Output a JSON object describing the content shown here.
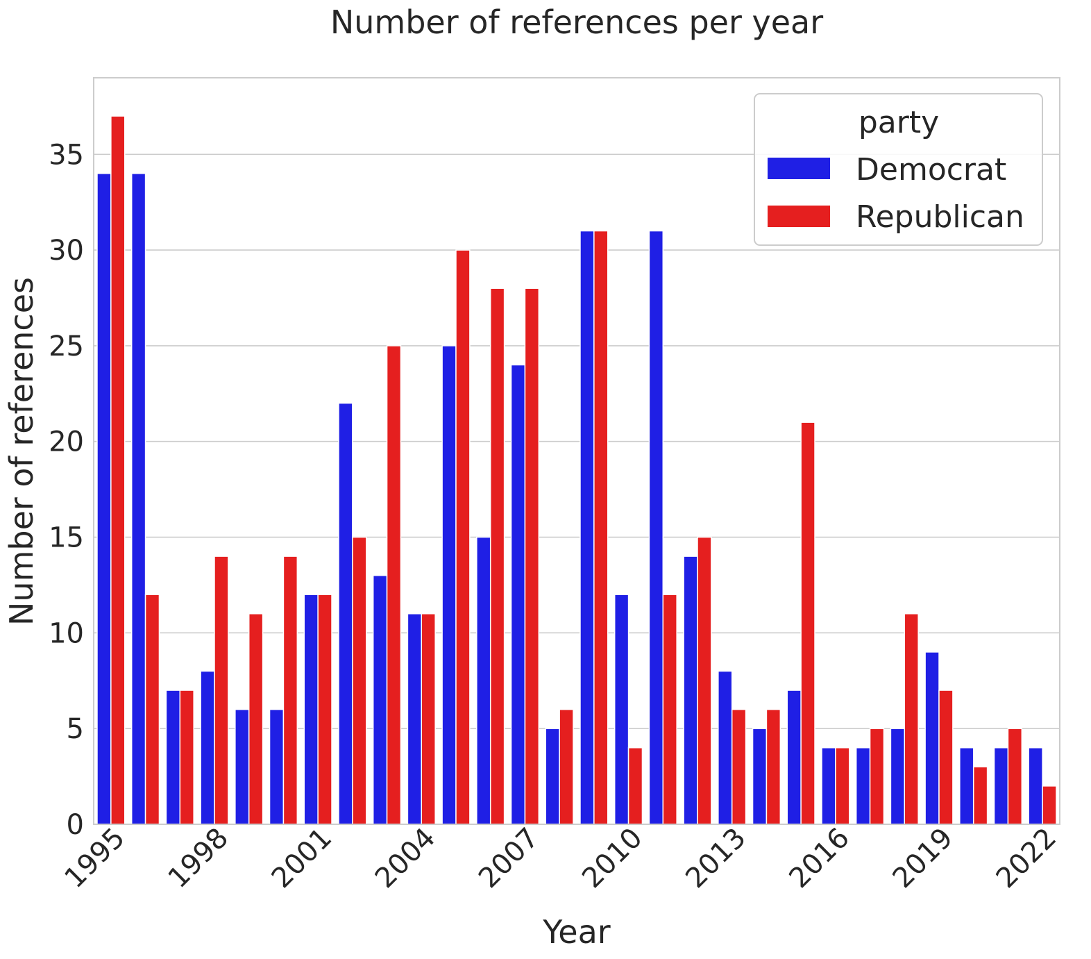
{
  "chart_data": {
    "type": "bar",
    "title": "Number of references per year",
    "xlabel": "Year",
    "ylabel": "Number of references",
    "ylim": [
      0,
      39
    ],
    "yticks": [
      0,
      5,
      10,
      15,
      20,
      25,
      30,
      35
    ],
    "categories": [
      1995,
      1996,
      1997,
      1998,
      1999,
      2000,
      2001,
      2002,
      2003,
      2004,
      2005,
      2006,
      2007,
      2008,
      2009,
      2010,
      2011,
      2012,
      2013,
      2014,
      2015,
      2016,
      2017,
      2018,
      2019,
      2020,
      2021,
      2022
    ],
    "xtick_labels": [
      "1995",
      "1998",
      "2001",
      "2004",
      "2007",
      "2010",
      "2013",
      "2016",
      "2019",
      "2022"
    ],
    "grid": true,
    "legend": {
      "title": "party",
      "placement": "top-right"
    },
    "series": [
      {
        "name": "Democrat",
        "color": "#1f1fe5",
        "values": [
          34,
          34,
          7,
          8,
          6,
          6,
          12,
          22,
          13,
          11,
          25,
          15,
          24,
          5,
          31,
          12,
          31,
          14,
          8,
          5,
          7,
          4,
          4,
          5,
          9,
          4,
          4,
          4
        ]
      },
      {
        "name": "Republican",
        "color": "#e51f1f",
        "values": [
          37,
          12,
          7,
          14,
          11,
          14,
          12,
          15,
          25,
          11,
          30,
          28,
          28,
          6,
          31,
          4,
          12,
          15,
          6,
          6,
          21,
          4,
          5,
          11,
          7,
          3,
          5,
          2
        ]
      }
    ]
  }
}
